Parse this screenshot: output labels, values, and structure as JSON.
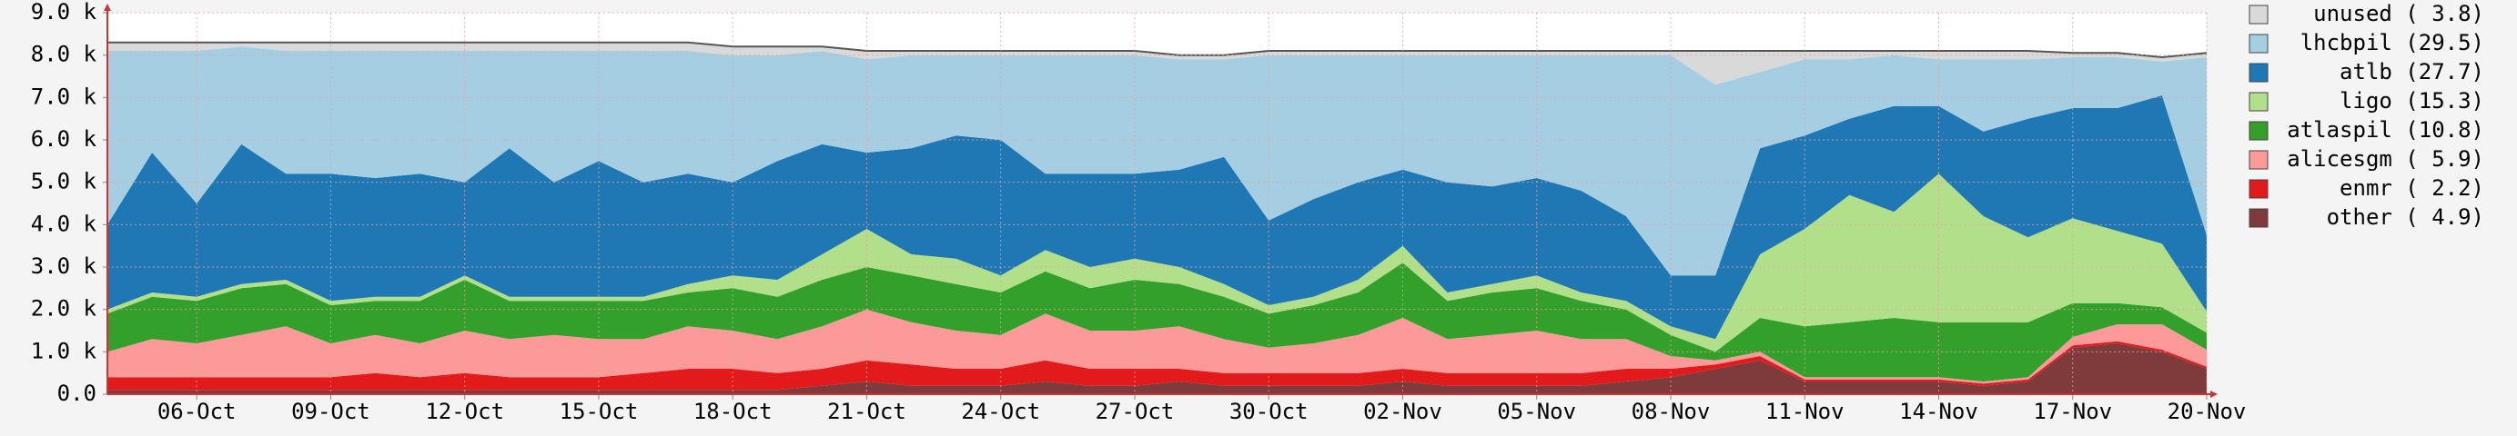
{
  "chart_data": {
    "type": "stacked-area",
    "categories": [
      null,
      null,
      "06-Oct",
      null,
      null,
      "09-Oct",
      null,
      null,
      "12-Oct",
      null,
      null,
      "15-Oct",
      null,
      null,
      "18-Oct",
      null,
      null,
      "21-Oct",
      null,
      null,
      "24-Oct",
      null,
      null,
      "27-Oct",
      null,
      null,
      "30-Oct",
      null,
      null,
      "02-Nov",
      null,
      null,
      "05-Nov",
      null,
      null,
      "08-Nov",
      null,
      null,
      "11-Nov",
      null,
      null,
      "14-Nov",
      null,
      null,
      "17-Nov",
      null,
      null,
      "20-Nov"
    ],
    "ylim": [
      0,
      9
    ],
    "yticks": [
      {
        "value": 0,
        "label": "0.0"
      },
      {
        "value": 1,
        "label": "1.0 k"
      },
      {
        "value": 2,
        "label": "2.0 k"
      },
      {
        "value": 3,
        "label": "3.0 k"
      },
      {
        "value": 4,
        "label": "4.0 k"
      },
      {
        "value": 5,
        "label": "5.0 k"
      },
      {
        "value": 6,
        "label": "6.0 k"
      },
      {
        "value": 7,
        "label": "7.0 k"
      },
      {
        "value": 8,
        "label": "8.0 k"
      },
      {
        "value": 9,
        "label": "9.0 k"
      }
    ],
    "grid": true,
    "legend": "right",
    "series": [
      {
        "name": "other ( 4.9)",
        "color": "#7f3b3b",
        "values": [
          0.1,
          0.1,
          0.1,
          0.1,
          0.1,
          0.1,
          0.1,
          0.1,
          0.1,
          0.1,
          0.1,
          0.1,
          0.1,
          0.1,
          0.1,
          0.1,
          0.2,
          0.3,
          0.2,
          0.2,
          0.2,
          0.3,
          0.2,
          0.2,
          0.3,
          0.2,
          0.2,
          0.2,
          0.2,
          0.3,
          0.2,
          0.2,
          0.2,
          0.2,
          0.3,
          0.4,
          0.6,
          0.8,
          0.3,
          0.3,
          0.3,
          0.3,
          0.2,
          0.3,
          1.1,
          1.2,
          1.0,
          0.6
        ]
      },
      {
        "name": "enmr ( 2.2)",
        "color": "#e31a1c",
        "values": [
          0.3,
          0.3,
          0.3,
          0.3,
          0.3,
          0.3,
          0.4,
          0.3,
          0.4,
          0.3,
          0.3,
          0.3,
          0.4,
          0.5,
          0.5,
          0.4,
          0.4,
          0.5,
          0.5,
          0.4,
          0.4,
          0.5,
          0.4,
          0.4,
          0.3,
          0.3,
          0.3,
          0.3,
          0.3,
          0.3,
          0.3,
          0.3,
          0.3,
          0.3,
          0.3,
          0.2,
          0.1,
          0.1,
          0.05,
          0.05,
          0.05,
          0.05,
          0.05,
          0.05,
          0.05,
          0.05,
          0.05,
          0.05
        ]
      },
      {
        "name": "alicesgm ( 5.9)",
        "color": "#fb9a99",
        "values": [
          0.6,
          0.9,
          0.8,
          1.0,
          1.2,
          0.8,
          0.9,
          0.8,
          1.0,
          0.9,
          1.0,
          0.9,
          0.8,
          1.0,
          0.9,
          0.8,
          1.0,
          1.2,
          1.0,
          0.9,
          0.8,
          1.1,
          0.9,
          0.9,
          1.0,
          0.8,
          0.6,
          0.7,
          0.9,
          1.2,
          0.8,
          0.9,
          1.0,
          0.8,
          0.7,
          0.3,
          0.1,
          0.1,
          0.05,
          0.05,
          0.05,
          0.05,
          0.05,
          0.05,
          0.2,
          0.4,
          0.6,
          0.4
        ]
      },
      {
        "name": "atlaspil (10.8)",
        "color": "#33a02c",
        "values": [
          0.9,
          1.0,
          1.0,
          1.1,
          1.0,
          0.9,
          0.8,
          1.0,
          1.2,
          0.9,
          0.8,
          0.9,
          0.9,
          0.8,
          1.0,
          1.0,
          1.1,
          1.0,
          1.1,
          1.1,
          1.0,
          1.0,
          1.0,
          1.2,
          1.0,
          1.0,
          0.8,
          0.9,
          1.0,
          1.3,
          0.9,
          1.0,
          1.0,
          0.9,
          0.7,
          0.5,
          0.2,
          0.8,
          1.2,
          1.3,
          1.4,
          1.3,
          1.4,
          1.3,
          0.8,
          0.5,
          0.4,
          0.4
        ]
      },
      {
        "name": "ligo (15.3)",
        "color": "#b2df8a",
        "values": [
          0.1,
          0.1,
          0.1,
          0.1,
          0.1,
          0.1,
          0.1,
          0.1,
          0.1,
          0.1,
          0.1,
          0.1,
          0.1,
          0.2,
          0.3,
          0.4,
          0.6,
          0.9,
          0.5,
          0.6,
          0.4,
          0.5,
          0.5,
          0.5,
          0.4,
          0.3,
          0.2,
          0.2,
          0.3,
          0.4,
          0.2,
          0.2,
          0.3,
          0.2,
          0.2,
          0.2,
          0.3,
          1.5,
          2.3,
          3.0,
          2.5,
          3.5,
          2.5,
          2.0,
          2.0,
          1.7,
          1.5,
          0.5
        ]
      },
      {
        "name": "atlb (27.7)",
        "color": "#1f78b4",
        "values": [
          2.0,
          3.3,
          2.2,
          3.3,
          2.5,
          3.0,
          2.8,
          2.9,
          2.2,
          3.5,
          2.7,
          3.2,
          2.7,
          2.6,
          2.2,
          2.8,
          2.6,
          1.8,
          2.5,
          2.9,
          3.2,
          1.8,
          2.2,
          2.0,
          2.3,
          3.0,
          2.0,
          2.3,
          2.3,
          1.8,
          2.6,
          2.3,
          2.3,
          2.4,
          2.0,
          1.2,
          1.5,
          2.5,
          2.2,
          1.8,
          2.5,
          1.6,
          2.0,
          2.8,
          2.6,
          2.9,
          3.5,
          1.8
        ]
      },
      {
        "name": "lhcbpil (29.5)",
        "color": "#a6cee3",
        "values": [
          4.1,
          2.4,
          3.6,
          2.3,
          2.9,
          2.9,
          3.0,
          2.9,
          3.1,
          2.3,
          3.1,
          2.6,
          3.1,
          2.9,
          3.0,
          2.5,
          2.2,
          2.2,
          2.2,
          1.9,
          2.0,
          2.8,
          2.8,
          2.8,
          2.6,
          2.3,
          3.9,
          3.4,
          3.0,
          2.7,
          3.0,
          3.1,
          2.9,
          3.2,
          3.8,
          5.2,
          4.5,
          1.8,
          1.8,
          1.4,
          1.2,
          1.1,
          1.7,
          1.4,
          1.2,
          1.2,
          0.8,
          4.2
        ]
      },
      {
        "name": "unused ( 3.8)",
        "color": "#d9d9d9",
        "values": [
          0.2,
          0.2,
          0.2,
          0.1,
          0.2,
          0.2,
          0.2,
          0.2,
          0.2,
          0.2,
          0.2,
          0.2,
          0.2,
          0.2,
          0.2,
          0.2,
          0.1,
          0.2,
          0.1,
          0.1,
          0.1,
          0.1,
          0.1,
          0.1,
          0.1,
          0.1,
          0.1,
          0.1,
          0.1,
          0.1,
          0.1,
          0.1,
          0.1,
          0.1,
          0.1,
          0.1,
          0.8,
          0.5,
          0.2,
          0.2,
          0.1,
          0.2,
          0.2,
          0.2,
          0.1,
          0.1,
          0.1,
          0.1
        ]
      }
    ]
  }
}
